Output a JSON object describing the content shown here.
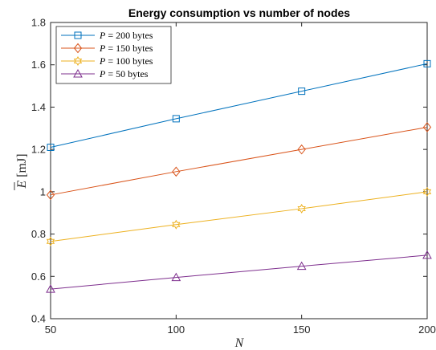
{
  "chart_data": {
    "type": "line",
    "title": "Energy consumption vs number of nodes",
    "xlabel": "N",
    "ylabel": "Ē [mJ]",
    "ylabel_symbol": "E",
    "ylabel_unit": "[mJ]",
    "x": [
      50,
      100,
      150,
      200
    ],
    "xlim": [
      50,
      200
    ],
    "ylim": [
      0.4,
      1.8
    ],
    "xticks": [
      "50",
      "100",
      "150",
      "200"
    ],
    "yticks": [
      "0.4",
      "0.6",
      "0.8",
      "1",
      "1.2",
      "1.4",
      "1.6",
      "1.8"
    ],
    "grid": false,
    "legend_position": "top-left",
    "series": [
      {
        "name": "P = 200 bytes",
        "legend_var": "P",
        "legend_rest": " = 200 bytes",
        "marker": "square",
        "color": "#0072BD",
        "values": [
          1.21,
          1.345,
          1.475,
          1.605
        ]
      },
      {
        "name": "P = 150 bytes",
        "legend_var": "P",
        "legend_rest": " = 150 bytes",
        "marker": "diamond",
        "color": "#D95319",
        "values": [
          0.985,
          1.095,
          1.2,
          1.305
        ]
      },
      {
        "name": "P = 100 bytes",
        "legend_var": "P",
        "legend_rest": " = 100 bytes",
        "marker": "hexagram",
        "color": "#EDB120",
        "values": [
          0.765,
          0.845,
          0.92,
          1.0
        ]
      },
      {
        "name": "P = 50 bytes",
        "legend_var": "P",
        "legend_rest": " = 50 bytes",
        "marker": "triangle",
        "color": "#7E2F8E",
        "values": [
          0.54,
          0.595,
          0.648,
          0.7
        ]
      }
    ]
  }
}
